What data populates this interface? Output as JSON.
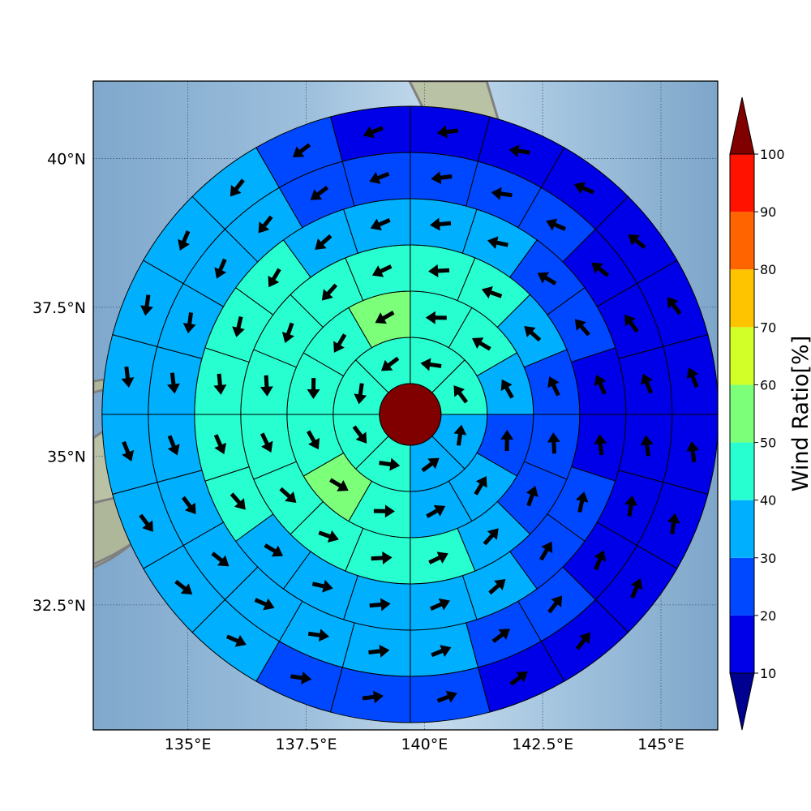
{
  "map": {
    "lon_range": [
      133.0,
      146.2
    ],
    "lat_range": [
      30.4,
      41.3
    ],
    "lon_ticks": [
      {
        "value": 135.0,
        "label": "135°E"
      },
      {
        "value": 137.5,
        "label": "137.5°E"
      },
      {
        "value": 140.0,
        "label": "140°E"
      },
      {
        "value": 142.5,
        "label": "142.5°E"
      },
      {
        "value": 145.0,
        "label": "145°E"
      }
    ],
    "lat_ticks": [
      {
        "value": 40.0,
        "label": "40°N"
      },
      {
        "value": 37.5,
        "label": "37.5°N"
      },
      {
        "value": 35.0,
        "label": "35°N"
      },
      {
        "value": 32.5,
        "label": "32.5°N"
      }
    ],
    "grid": true,
    "background": "shaded-relief",
    "coastline_color": "#808080"
  },
  "polar_grid": {
    "center_lon": 139.7,
    "center_lat": 35.7,
    "rings": [
      1,
      2,
      3,
      4,
      5,
      6
    ],
    "sectors_per_ring": [
      8,
      12,
      16,
      20,
      24,
      24
    ],
    "center_value": 100,
    "center_color": "#800000",
    "cells": [
      [
        45,
        45,
        30,
        35,
        45,
        45,
        45,
        45
      ],
      [
        40,
        40,
        30,
        20,
        30,
        35,
        45,
        50,
        45,
        45,
        45,
        50
      ],
      [
        40,
        40,
        30,
        20,
        20,
        25,
        30,
        45,
        45,
        40,
        45,
        45,
        45,
        45,
        45,
        40
      ],
      [
        30,
        30,
        20,
        20,
        10,
        10,
        20,
        20,
        30,
        30,
        30,
        30,
        30,
        45,
        45,
        45,
        45,
        45,
        35,
        30
      ],
      [
        20,
        20,
        20,
        10,
        10,
        10,
        10,
        10,
        10,
        20,
        20,
        30,
        30,
        30,
        30,
        30,
        30,
        30,
        30,
        30,
        30,
        35,
        20,
        20
      ],
      [
        10,
        10,
        10,
        10,
        10,
        10,
        10,
        10,
        10,
        10,
        10,
        20,
        20,
        20,
        30,
        30,
        30,
        30,
        30,
        30,
        30,
        30,
        20,
        10
      ]
    ]
  },
  "colorbar": {
    "label": "Wind Ratio[%]",
    "ticks": [
      10,
      20,
      30,
      40,
      50,
      60,
      70,
      80,
      90,
      100
    ],
    "colors": [
      "#0000e8",
      "#0048ff",
      "#00b0ff",
      "#28ffd0",
      "#7cff79",
      "#d2ff28",
      "#ffc400",
      "#ff6400",
      "#ff1300"
    ],
    "under_color": "#000090",
    "over_color": "#800000",
    "extend": "both"
  }
}
